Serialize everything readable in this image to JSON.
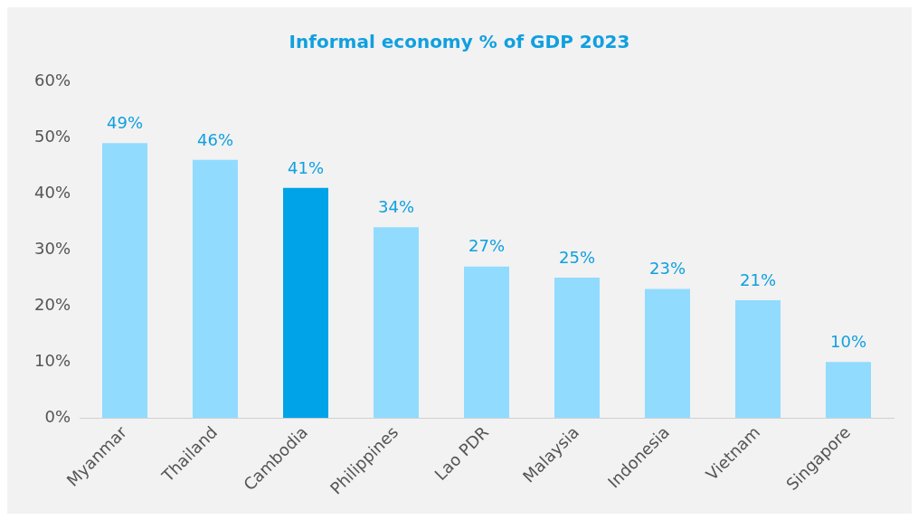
{
  "chart_data": {
    "type": "bar",
    "title": "Informal economy % of GDP 2023",
    "categories": [
      "Myanmar",
      "Thailand",
      "Cambodia",
      "Philippines",
      "Lao PDR",
      "Malaysia",
      "Indonesia",
      "Vietnam",
      "Singapore"
    ],
    "values": [
      49,
      46,
      41,
      34,
      27,
      25,
      23,
      21,
      10
    ],
    "value_labels": [
      "49%",
      "46%",
      "41%",
      "34%",
      "27%",
      "25%",
      "23%",
      "21%",
      "10%"
    ],
    "colors": [
      "#91dbff",
      "#91dbff",
      "#00a3e8",
      "#91dbff",
      "#91dbff",
      "#91dbff",
      "#91dbff",
      "#91dbff",
      "#91dbff"
    ],
    "ylim": [
      0,
      60
    ],
    "yticks": [
      {
        "value": 0,
        "label": "0%"
      },
      {
        "value": 10,
        "label": "10%"
      },
      {
        "value": 20,
        "label": "20%"
      },
      {
        "value": 30,
        "label": "30%"
      },
      {
        "value": 40,
        "label": "40%"
      },
      {
        "value": 50,
        "label": "50%"
      },
      {
        "value": 60,
        "label": "60%"
      }
    ],
    "grid": false,
    "legend": false
  }
}
